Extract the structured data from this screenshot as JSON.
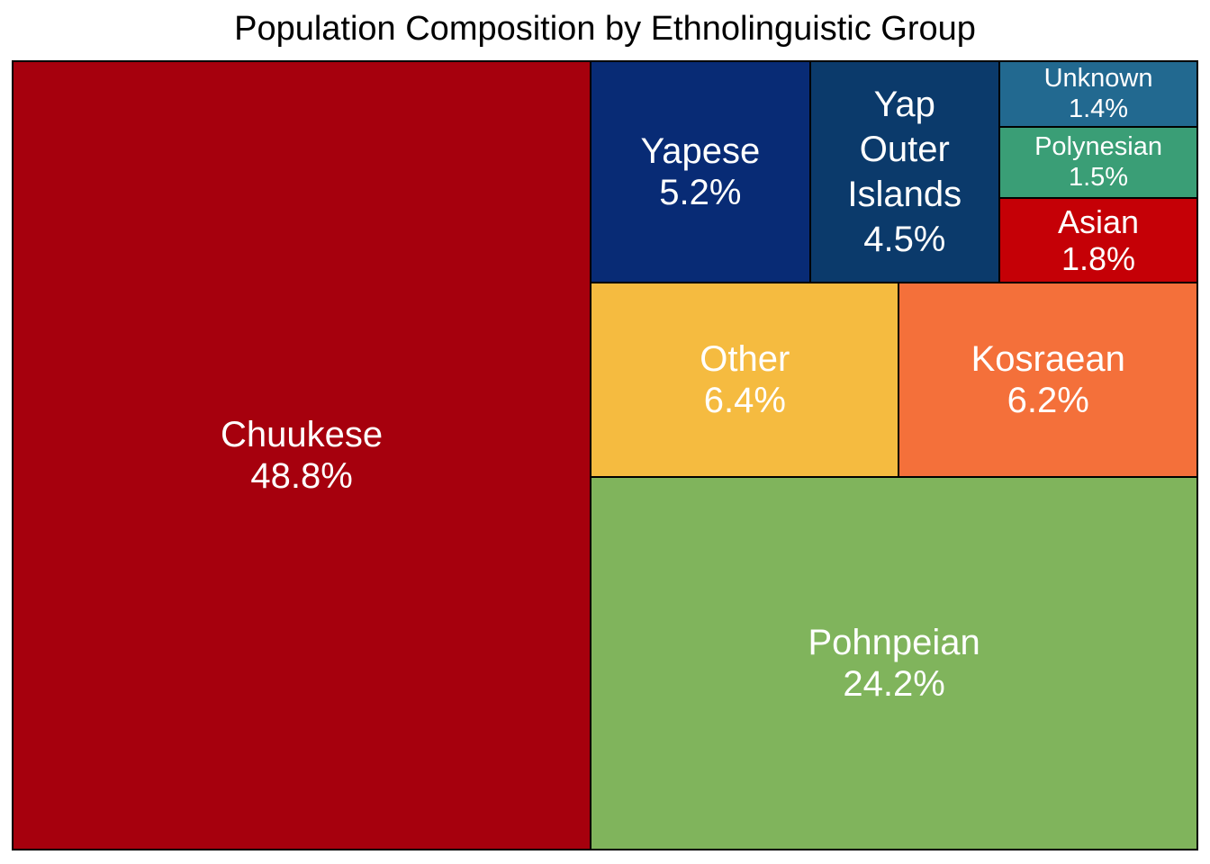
{
  "chart_data": {
    "type": "treemap",
    "title": "Population Composition by Ethnolinguistic Group",
    "items": [
      {
        "label": "Chuukese",
        "value": 48.8,
        "display": "48.8%",
        "color": "#A6000D"
      },
      {
        "label": "Pohnpeian",
        "value": 24.2,
        "display": "24.2%",
        "color": "#80B45C"
      },
      {
        "label": "Other",
        "value": 6.4,
        "display": "6.4%",
        "color": "#F5BB40"
      },
      {
        "label": "Kosraean",
        "value": 6.2,
        "display": "6.2%",
        "color": "#F4703A"
      },
      {
        "label": "Yapese",
        "value": 5.2,
        "display": "5.2%",
        "color": "#082B75"
      },
      {
        "label": "Yap Outer Islands",
        "value": 4.5,
        "display": "4.5%",
        "color": "#0B3A6B"
      },
      {
        "label": "Asian",
        "value": 1.8,
        "display": "1.8%",
        "color": "#C50006"
      },
      {
        "label": "Polynesian",
        "value": 1.5,
        "display": "1.5%",
        "color": "#3A9E76"
      },
      {
        "label": "Unknown",
        "value": 1.4,
        "display": "1.4%",
        "color": "#226990"
      }
    ]
  }
}
